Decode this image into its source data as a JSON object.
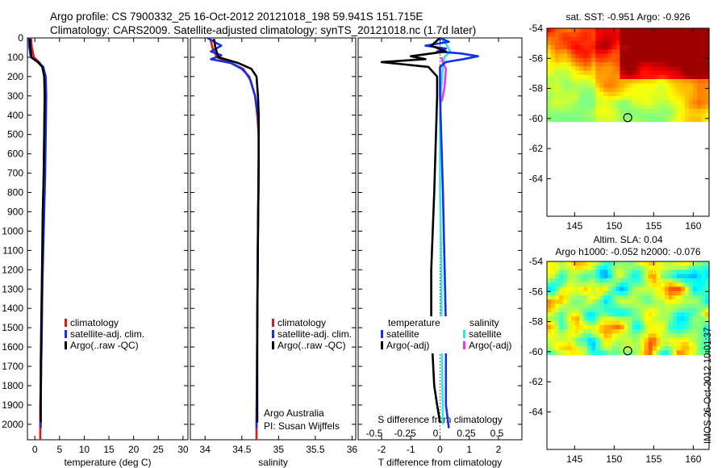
{
  "titles": {
    "line1": "Argo profile: CS 7900332_25 16-Oct-2012 20121018_198 59.941S 151.715E",
    "line2": "Climatology: CARS2009. Satellite-adjusted climatology: synTS_20121018.nc (1.7d later)"
  },
  "stamp": "IMOS 26-Oct-2012 10:01:37",
  "colors": {
    "red": "#e8141c",
    "blue": "#1430e6",
    "black": "#000000",
    "cyan": "#33e6e6",
    "magenta": "#f033f0"
  },
  "chart_data": [
    {
      "type": "line",
      "id": "temperature",
      "xlabel": "temperature (deg C)",
      "xlim": [
        -1.5,
        31
      ],
      "xticks": [
        0,
        5,
        10,
        15,
        20,
        25,
        30
      ],
      "xtick_labels": [
        "0",
        "5",
        "10",
        "15",
        "20",
        "25",
        "30"
      ],
      "ylim": [
        2080,
        0
      ],
      "yticks": [
        0,
        100,
        200,
        300,
        400,
        500,
        600,
        700,
        800,
        900,
        1000,
        1100,
        1200,
        1300,
        1400,
        1500,
        1600,
        1700,
        1800,
        1900,
        2000
      ],
      "ytick_labels": [
        "0",
        "100",
        "200",
        "300",
        "400",
        "500",
        "600",
        "700",
        "800",
        "900",
        "1000",
        "1100",
        "1200",
        "1300",
        "1400",
        "1500",
        "1600",
        "1700",
        "1800",
        "1900",
        "2000"
      ],
      "legend": [
        "climatology",
        "satellite-adj. clim.",
        "Argo(..raw -QC)"
      ],
      "series": [
        {
          "name": "climatology",
          "color": "red",
          "x": [
            -0.8,
            -0.6,
            -0.2,
            1.0,
            1.8,
            2.0,
            2.0,
            1.9,
            1.8,
            1.7,
            1.6,
            1.5,
            1.4,
            1.3,
            1.2,
            1.1,
            1.1,
            1.1
          ],
          "y": [
            0,
            50,
            100,
            130,
            160,
            200,
            300,
            500,
            700,
            900,
            1100,
            1300,
            1500,
            1700,
            1800,
            1900,
            2000,
            2080
          ]
        },
        {
          "name": "satellite-adj. clim.",
          "color": "blue",
          "x": [
            -1.2,
            -1.1,
            -0.8,
            0.6,
            1.7,
            2.2,
            2.3,
            2.2,
            2.1,
            1.9,
            1.7,
            1.5,
            1.4,
            1.3,
            1.2,
            1.2
          ],
          "y": [
            0,
            50,
            100,
            125,
            150,
            200,
            300,
            500,
            700,
            900,
            1100,
            1300,
            1500,
            1700,
            1900,
            2020
          ]
        },
        {
          "name": "Argo(..raw -QC)",
          "color": "black",
          "x": [
            -1.0,
            -0.9,
            -0.7,
            0.6,
            1.5,
            1.9,
            2.0,
            1.9,
            1.8,
            1.6,
            1.5,
            1.4,
            1.3,
            1.2,
            1.2
          ],
          "y": [
            5,
            50,
            100,
            125,
            150,
            200,
            300,
            500,
            700,
            900,
            1100,
            1300,
            1500,
            1700,
            1990
          ]
        }
      ]
    },
    {
      "type": "line",
      "id": "salinity",
      "xlabel": "salinity",
      "xlim": [
        33.8,
        36.05
      ],
      "xticks": [
        34,
        34.5,
        35,
        35.5,
        36
      ],
      "xtick_labels": [
        "34",
        "34.5",
        "35",
        "35.5",
        "36"
      ],
      "ylim": [
        2080,
        0
      ],
      "legend": [
        "climatology",
        "satellite-adj. clim.",
        "Argo(..raw -QC)"
      ],
      "annotations": [
        "Argo Australia",
        "PI: Susan Wijffels"
      ],
      "series": [
        {
          "name": "climatology",
          "color": "red",
          "x": [
            34.07,
            34.1,
            34.16,
            34.35,
            34.52,
            34.62,
            34.68,
            34.71,
            34.73,
            34.73,
            34.72,
            34.71,
            34.7,
            34.7
          ],
          "y": [
            0,
            50,
            100,
            130,
            160,
            220,
            300,
            400,
            500,
            700,
            1000,
            1500,
            2000,
            2080
          ]
        },
        {
          "name": "satellite-adj. clim.",
          "color": "blue",
          "x": [
            34.03,
            34.22,
            34.08,
            34.22,
            34.08,
            34.35,
            34.5,
            34.6,
            34.68,
            34.72,
            34.73,
            34.73,
            34.72,
            34.71,
            34.7
          ],
          "y": [
            0,
            40,
            70,
            90,
            110,
            130,
            160,
            200,
            300,
            400,
            500,
            700,
            1000,
            1500,
            2020
          ]
        },
        {
          "name": "Argo(..raw -QC)",
          "color": "black",
          "x": [
            34.12,
            34.14,
            34.18,
            34.45,
            34.63,
            34.7,
            34.72,
            34.73,
            34.73,
            34.72,
            34.71,
            34.71
          ],
          "y": [
            5,
            50,
            100,
            130,
            160,
            200,
            300,
            400,
            600,
            1000,
            1500,
            1990
          ]
        }
      ]
    },
    {
      "type": "line",
      "id": "differences",
      "xlabel": "T difference from climatology",
      "top_xlabel": "S difference from climatology",
      "xlim": [
        -2.8,
        2.8
      ],
      "xticks": [
        -2,
        -1,
        0,
        1,
        2
      ],
      "xtick_labels": [
        "-2",
        "-1",
        "0",
        "1",
        "2"
      ],
      "s_ticks": [
        -0.5,
        -0.25,
        0,
        0.25,
        0.5
      ],
      "s_tick_labels": [
        "-0.5",
        "-0.25",
        "0",
        "0.25",
        "0.5"
      ],
      "ylim": [
        2080,
        0
      ],
      "legend_headings": [
        "temperature",
        "salinity"
      ],
      "legend": [
        "satellite",
        "Argo(-adj)",
        "satellite",
        "Argo(-adj)"
      ],
      "series": [
        {
          "name": "satellite",
          "quantity": "temperature",
          "color": "blue",
          "x": [
            0.0,
            0.3,
            -0.5,
            0.2,
            -0.1,
            0.7,
            1.3,
            0.8,
            0.2,
            0.0,
            0.0,
            0.1,
            0.2,
            0.2,
            0.3
          ],
          "y": [
            0,
            20,
            40,
            55,
            70,
            80,
            95,
            110,
            125,
            150,
            300,
            800,
            1500,
            1900,
            2020
          ]
        },
        {
          "name": "Argo(-adj)",
          "quantity": "temperature",
          "color": "black",
          "x": [
            0.0,
            -0.3,
            0.2,
            -1.0,
            -0.5,
            -2.0,
            -0.4,
            -0.1,
            -0.1,
            -0.2,
            -0.3,
            -0.3,
            -0.2,
            -0.1,
            0.0
          ],
          "y": [
            0,
            40,
            70,
            95,
            110,
            125,
            150,
            200,
            300,
            800,
            1200,
            1500,
            1800,
            1900,
            1990
          ]
        },
        {
          "name": "satellite",
          "quantity": "salinity",
          "color": "cyan",
          "x": [
            0.0,
            0.2,
            0.35,
            0.15,
            0.1,
            0.05,
            0.0,
            0.0,
            0.05,
            0.05,
            0.08,
            0.1
          ],
          "y": [
            0,
            30,
            70,
            100,
            150,
            250,
            400,
            800,
            1200,
            1500,
            1800,
            2000
          ]
        },
        {
          "name": "Argo(-adj)",
          "quantity": "salinity",
          "color": "magenta",
          "x": [
            0.05,
            0.1,
            0.2,
            0.18,
            0.15,
            0.1,
            0.05
          ],
          "y": [
            100,
            130,
            160,
            200,
            260,
            300,
            330
          ]
        }
      ]
    },
    {
      "type": "heatmap",
      "id": "sst_map",
      "title": "sat. SST: -0.951 Argo: -0.926",
      "xlim": [
        141.5,
        162
      ],
      "ylim": [
        -66.5,
        -54
      ],
      "xticks": [
        145,
        150,
        155,
        160
      ],
      "xtick_labels": [
        "145",
        "150",
        "155",
        "160"
      ],
      "yticks": [
        -54,
        -56,
        -58,
        -60,
        -62,
        -64
      ],
      "ytick_labels": [
        "-54",
        "-56",
        "-58",
        "-60",
        "-62",
        "-64"
      ],
      "data_lat_range": [
        -54,
        -60.2
      ],
      "float_position": [
        151.715,
        -59.941
      ]
    },
    {
      "type": "heatmap",
      "id": "sla_map",
      "title": "Altim. SLA: 0.04",
      "subtitle": "Argo h1000: -0.052 h2000: -0.076",
      "xlim": [
        141.5,
        162
      ],
      "ylim": [
        -66.5,
        -54
      ],
      "xticks": [
        145,
        150,
        155,
        160
      ],
      "xtick_labels": [
        "145",
        "150",
        "155",
        "160"
      ],
      "yticks": [
        -54,
        -56,
        -58,
        -60,
        -62,
        -64
      ],
      "ytick_labels": [
        "-54",
        "-56",
        "-58",
        "-60",
        "-62",
        "-64"
      ],
      "data_lat_range": [
        -54,
        -60.2
      ],
      "float_position": [
        151.715,
        -59.941
      ]
    }
  ]
}
